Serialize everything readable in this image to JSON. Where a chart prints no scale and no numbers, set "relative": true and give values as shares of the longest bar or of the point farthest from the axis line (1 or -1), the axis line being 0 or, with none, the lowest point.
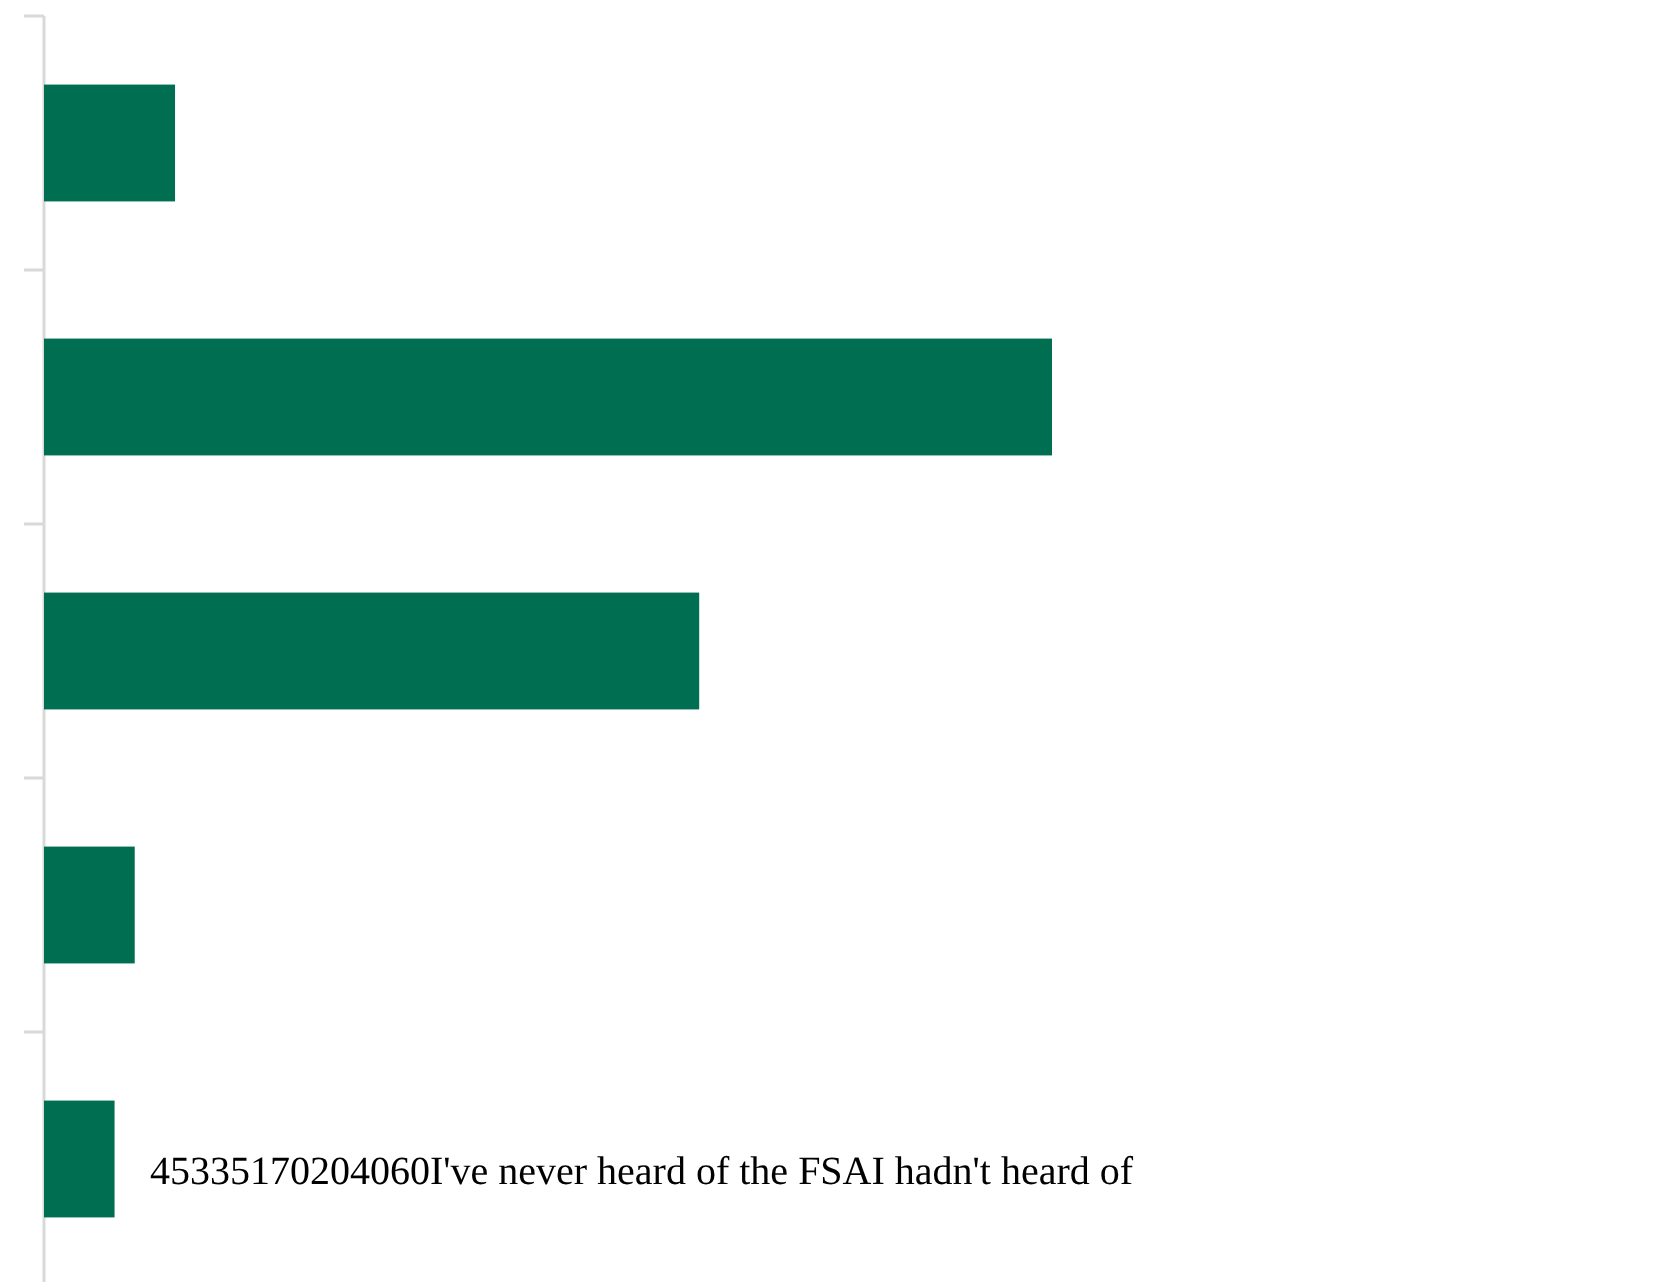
{
  "chart_data": {
    "type": "bar",
    "orientation": "horizontal",
    "relative": true,
    "categories": [
      null,
      null,
      null,
      null,
      null
    ],
    "values": [
      0.13,
      1,
      0.65,
      0.09,
      0.07
    ],
    "color": "#006e51",
    "annotations": [
      "45335170204060I've never heard of the FSAI hadn't heard of"
    ]
  }
}
